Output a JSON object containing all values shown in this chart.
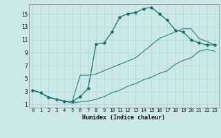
{
  "xlabel": "Humidex (Indice chaleur)",
  "xlim": [
    -0.5,
    23.5
  ],
  "ylim": [
    0.5,
    16.5
  ],
  "xticks": [
    0,
    1,
    2,
    3,
    4,
    5,
    6,
    7,
    8,
    9,
    10,
    11,
    12,
    13,
    14,
    15,
    16,
    17,
    18,
    19,
    20,
    21,
    22,
    23
  ],
  "yticks": [
    1,
    3,
    5,
    7,
    9,
    11,
    13,
    15
  ],
  "bg_color": "#cce8e8",
  "line_color": "#1a7070",
  "grid_color": "#aad4d4",
  "curve_main": [
    3.2,
    2.8,
    2.1,
    1.8,
    1.5,
    1.5,
    2.2,
    3.5,
    10.3,
    10.5,
    12.2,
    14.5,
    15.0,
    15.2,
    15.8,
    16.0,
    15.0,
    14.0,
    12.5,
    12.2,
    11.0,
    10.5,
    10.2,
    10.2
  ],
  "curve_min": [
    3.2,
    2.8,
    2.1,
    1.8,
    1.5,
    1.2,
    1.4,
    1.5,
    1.8,
    2.2,
    2.8,
    3.2,
    3.8,
    4.2,
    4.8,
    5.2,
    5.8,
    6.2,
    7.2,
    7.8,
    8.2,
    9.2,
    9.5,
    9.2
  ],
  "curve_max": [
    3.2,
    2.8,
    2.1,
    1.8,
    1.5,
    1.5,
    5.5,
    5.5,
    5.7,
    6.2,
    6.7,
    7.2,
    7.7,
    8.2,
    9.2,
    10.2,
    11.2,
    11.7,
    12.2,
    12.7,
    12.7,
    11.2,
    10.7,
    10.2
  ]
}
